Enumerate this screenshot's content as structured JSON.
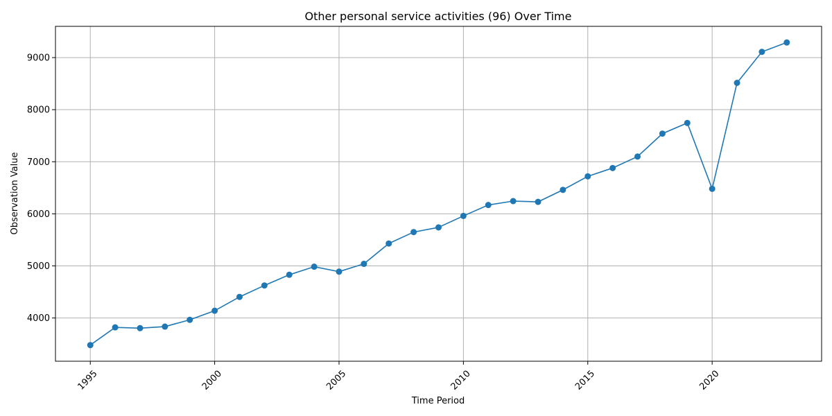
{
  "chart_data": {
    "type": "line",
    "title": "Other personal service activities (96) Over Time",
    "xlabel": "Time Period",
    "ylabel": "Observation Value",
    "x": [
      1995,
      1996,
      1997,
      1998,
      1999,
      2000,
      2001,
      2002,
      2003,
      2004,
      2005,
      2006,
      2007,
      2008,
      2009,
      2010,
      2011,
      2012,
      2013,
      2014,
      2015,
      2016,
      2017,
      2018,
      2019,
      2020,
      2021,
      2022,
      2023
    ],
    "series": [
      {
        "values": [
          3480,
          3820,
          3805,
          3835,
          3965,
          4140,
          4405,
          4625,
          4830,
          4985,
          4890,
          5040,
          5430,
          5650,
          5740,
          5960,
          6170,
          6245,
          6230,
          6460,
          6720,
          6880,
          7100,
          7540,
          7745,
          6480,
          8515,
          9110,
          9290
        ],
        "color": "#1f77b4"
      }
    ],
    "xticks": [
      1995,
      2000,
      2005,
      2010,
      2015,
      2020
    ],
    "yticks": [
      4000,
      5000,
      6000,
      7000,
      8000,
      9000
    ],
    "xlim": [
      1993.6,
      2024.4
    ],
    "ylim": [
      3170,
      9600
    ],
    "grid": true,
    "legend": "none",
    "marker": "circle"
  }
}
